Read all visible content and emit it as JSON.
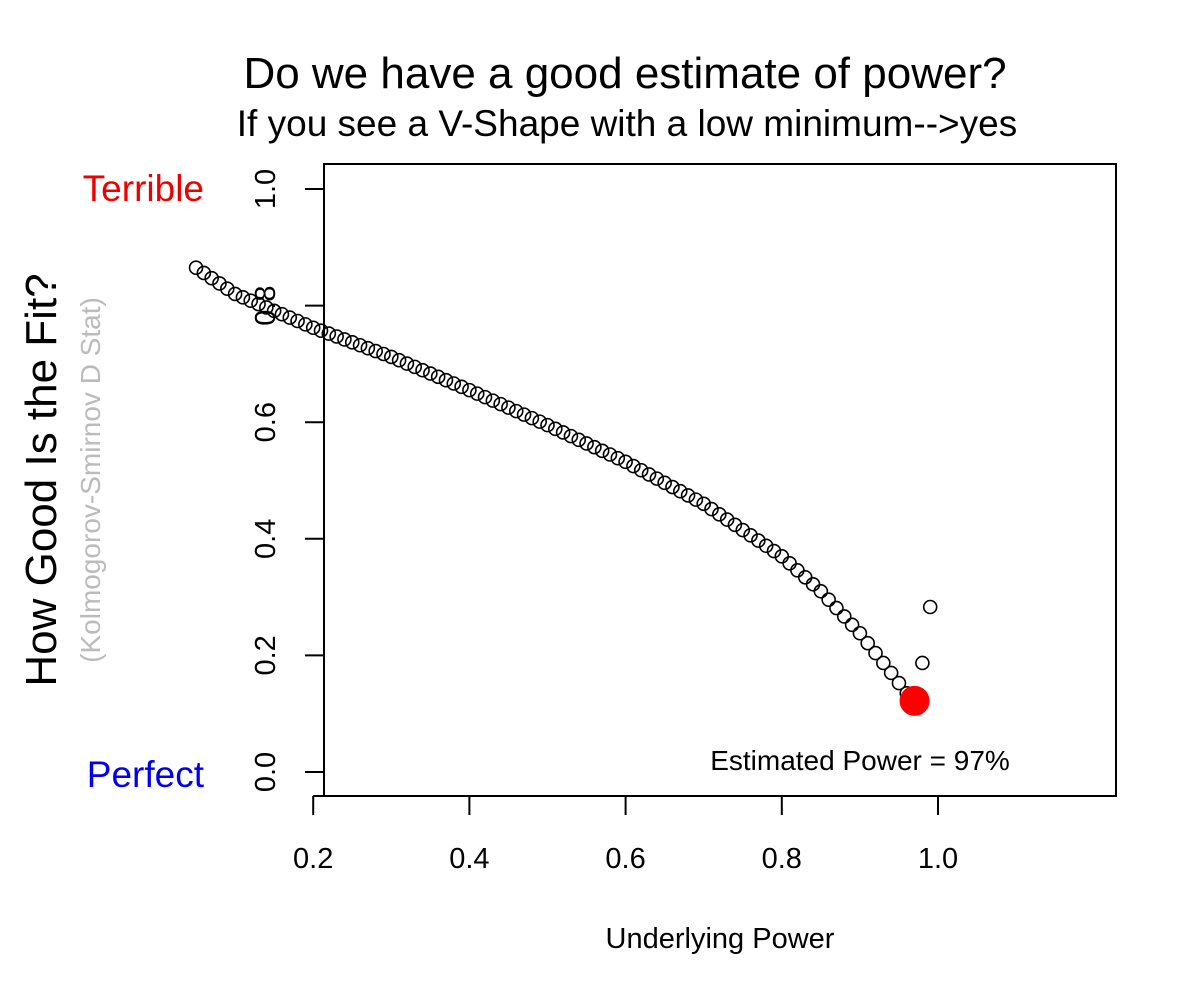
{
  "chart_data": {
    "type": "scatter",
    "title": "Do we have a good estimate of power?",
    "subtitle": "If you see a V-Shape with a low minimum-->yes",
    "xlabel": "Underlying Power",
    "ylabel": "How Good Is the Fit?",
    "ylabel_secondary": "(Kolmogorov-Smirnov D Stat)",
    "y_top_label": "Terrible",
    "y_bottom_label": "Perfect",
    "annotation": "Estimated Power = 97%",
    "xlim": [
      0.05,
      0.99
    ],
    "ylim": [
      0.0,
      1.0
    ],
    "x_ticks": [
      0.2,
      0.4,
      0.6,
      0.8,
      1.0
    ],
    "x_tick_labels": [
      "0.2",
      "0.4",
      "0.6",
      "0.8",
      "1.0"
    ],
    "y_ticks": [
      0.0,
      0.2,
      0.4,
      0.6,
      0.8,
      1.0
    ],
    "y_tick_labels": [
      "0.0",
      "0.2",
      "0.4",
      "0.6",
      "0.8",
      "1.0"
    ],
    "grid": false,
    "colors": {
      "highlight": "#ff0000",
      "terrible": "#ee0000",
      "perfect": "#0000ee",
      "secondary_label": "#bbbbbb"
    },
    "curve_anchors": [
      [
        0.05,
        0.865
      ],
      [
        0.1,
        0.82
      ],
      [
        0.2,
        0.762
      ],
      [
        0.3,
        0.712
      ],
      [
        0.4,
        0.655
      ],
      [
        0.5,
        0.595
      ],
      [
        0.6,
        0.532
      ],
      [
        0.7,
        0.46
      ],
      [
        0.8,
        0.37
      ],
      [
        0.85,
        0.31
      ],
      [
        0.9,
        0.238
      ],
      [
        0.94,
        0.17
      ],
      [
        0.96,
        0.135
      ]
    ],
    "extra_points": [
      {
        "x": 0.98,
        "y": 0.187
      },
      {
        "x": 0.99,
        "y": 0.283
      }
    ],
    "highlight_point": {
      "x": 0.97,
      "y": 0.122
    }
  }
}
